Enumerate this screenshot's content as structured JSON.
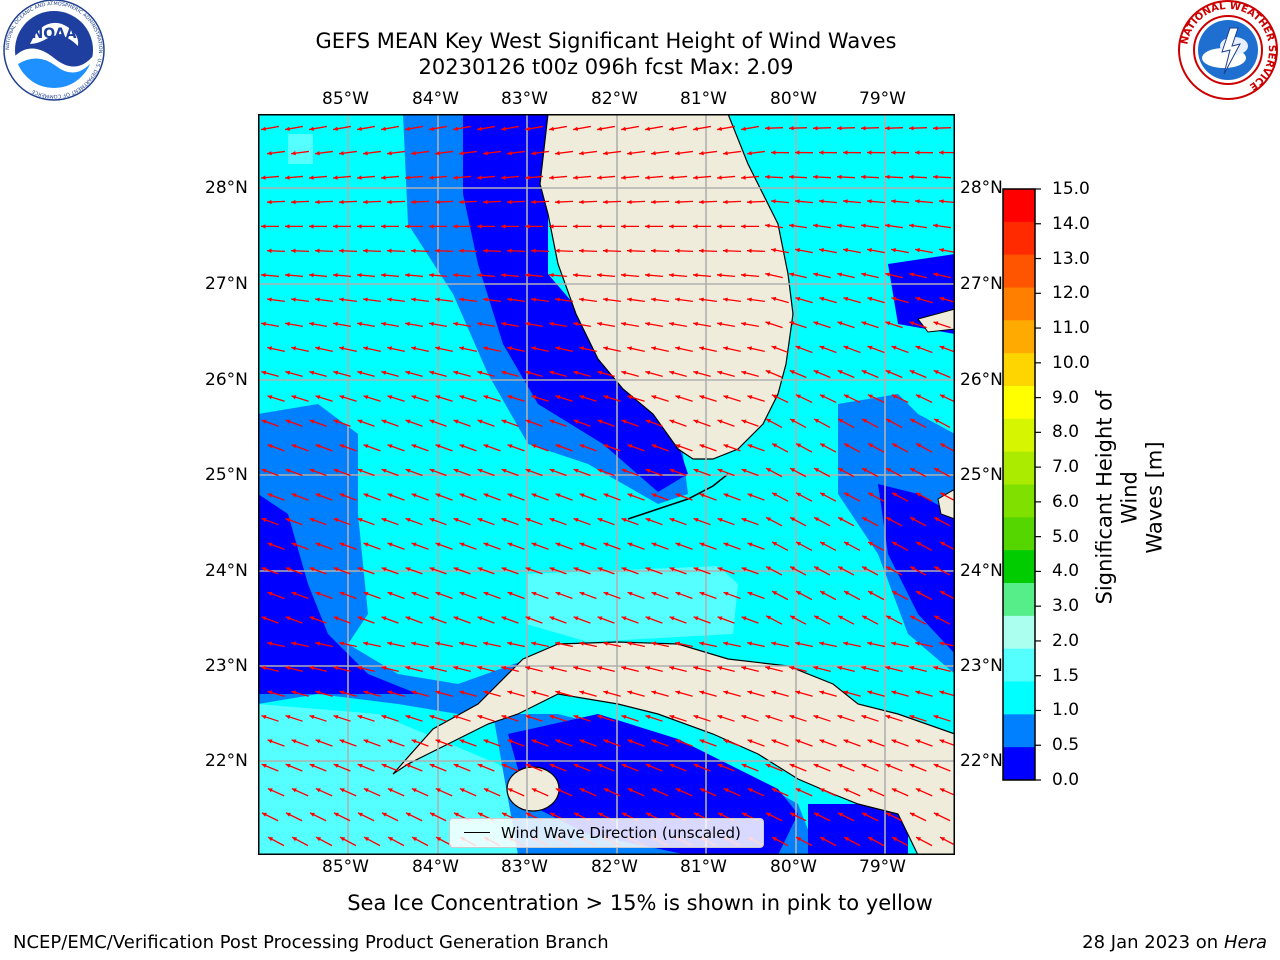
{
  "title": {
    "line1": "GEFS MEAN Key West Significant Height of Wind Waves",
    "line2": "20230126 t00z 096h fcst   Max: 2.09"
  },
  "map": {
    "lon_labels": [
      "85°W",
      "84°W",
      "83°W",
      "82°W",
      "81°W",
      "80°W",
      "79°W"
    ],
    "lat_labels": [
      "28°N",
      "27°N",
      "26°N",
      "25°N",
      "24°N",
      "23°N",
      "22°N"
    ],
    "legend_label": "Wind Wave Direction (unscaled)",
    "arrow_color": "#ff0000",
    "land_color": "#efecdc",
    "grid_color": "#b0b0b0"
  },
  "colorbar": {
    "label_line1": "Significant Height of Wind",
    "label_line2": "Waves [m]",
    "ticks": [
      "15.0",
      "14.0",
      "13.0",
      "12.0",
      "11.0",
      "10.0",
      "9.0",
      "8.0",
      "7.0",
      "6.0",
      "5.0",
      "4.0",
      "3.0",
      "2.0",
      "1.5",
      "1.0",
      "0.5",
      "0.0"
    ],
    "colors": [
      "#ff0000",
      "#ff2a00",
      "#ff5500",
      "#ff8000",
      "#ffaa00",
      "#ffd500",
      "#ffff00",
      "#d5f500",
      "#aaeb00",
      "#80e000",
      "#55d600",
      "#00cc00",
      "#55ee88",
      "#aaffee",
      "#55ffff",
      "#00ffff",
      "#0080ff",
      "#0000ff"
    ]
  },
  "logos": {
    "noaa_text": "NOAA",
    "noaa_ring": "NATIONAL OCEANIC AND ATMOSPHERIC ADMINISTRATION · U.S. DEPARTMENT OF COMMERCE",
    "nws_ring": "NATIONAL WEATHER SERVICE"
  },
  "subtitle": "Sea Ice Concentration > 15% is shown in pink to yellow",
  "footer": {
    "left": "NCEP/EMC/Verification Post Processing Product Generation Branch",
    "right_date": "28 Jan 2023 on ",
    "right_host": "Hera"
  }
}
